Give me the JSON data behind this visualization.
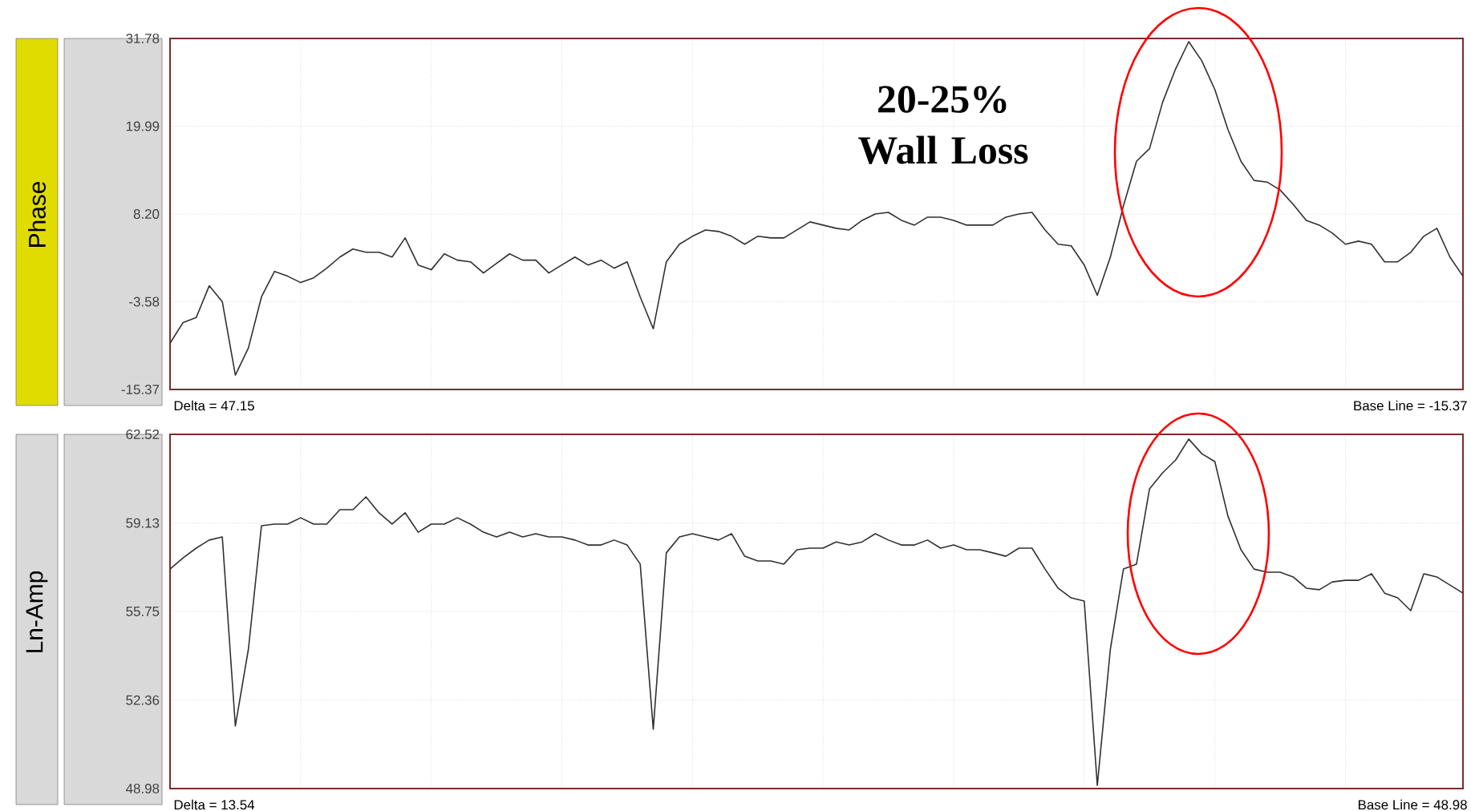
{
  "chart_data": [
    {
      "type": "line",
      "ylabel": "Phase",
      "color": "#303030",
      "grid": true,
      "tick_labels": "y",
      "categories": [
        null,
        null,
        null,
        null,
        null,
        null,
        null,
        null,
        null,
        null,
        null,
        null,
        null,
        null,
        null,
        null,
        null,
        null,
        null,
        null,
        null,
        null,
        null,
        null,
        null,
        null,
        null,
        null,
        null,
        null,
        null,
        null,
        null,
        null,
        null,
        null,
        null,
        null,
        null,
        null,
        null,
        null,
        null,
        null,
        null,
        null,
        null,
        null,
        null,
        null,
        null,
        null,
        null,
        null,
        null,
        null,
        null,
        null,
        null,
        null,
        null,
        null,
        null,
        null,
        null,
        null,
        null,
        null,
        null,
        null,
        null,
        null,
        null,
        null,
        null,
        null,
        null,
        null,
        null,
        null,
        null,
        null,
        null,
        null,
        null,
        null,
        null,
        null,
        null,
        null,
        null,
        null,
        null,
        null,
        null,
        null,
        null,
        null,
        null,
        null
      ],
      "values": [
        -9.15,
        -6.37,
        -5.72,
        -1.44,
        -3.58,
        -13.44,
        -9.79,
        -2.93,
        0.49,
        -0.15,
        -1.01,
        -0.37,
        0.92,
        2.42,
        3.49,
        3.06,
        3.06,
        2.42,
        4.99,
        1.35,
        0.71,
        2.85,
        2.0,
        1.78,
        0.28,
        1.56,
        2.85,
        2.0,
        2.0,
        0.28,
        1.35,
        2.42,
        1.35,
        2.0,
        0.92,
        1.78,
        -2.93,
        -7.22,
        1.78,
        4.14,
        5.21,
        6.06,
        5.85,
        5.21,
        4.14,
        5.21,
        4.99,
        4.99,
        6.06,
        7.14,
        6.71,
        6.28,
        6.06,
        7.35,
        8.21,
        8.42,
        7.35,
        6.71,
        7.78,
        7.78,
        7.35,
        6.71,
        6.71,
        6.71,
        7.78,
        8.21,
        8.42,
        6.06,
        4.14,
        3.92,
        1.35,
        -2.72,
        2.42,
        9.28,
        15.28,
        16.99,
        23.21,
        27.71,
        31.35,
        28.78,
        24.92,
        19.56,
        15.28,
        12.71,
        12.49,
        11.42,
        9.49,
        7.35,
        6.71,
        5.64,
        4.14,
        4.56,
        4.14,
        1.78,
        1.78,
        3.06,
        5.21,
        6.28,
        2.42,
        -0.15
      ],
      "ylim": [
        -15.37,
        31.78
      ],
      "yticks": [
        -15.37,
        -3.58,
        {
          "value": 8.2,
          "label": "8.20"
        },
        19.99,
        31.78
      ],
      "annotations": [
        "Delta = 47.15",
        "Base Line = -15.37",
        "20-25% Wall Loss"
      ]
    },
    {
      "type": "line",
      "ylabel": "Ln-Amp",
      "color": "#303030",
      "grid": true,
      "tick_labels": "y",
      "categories": [
        null,
        null,
        null,
        null,
        null,
        null,
        null,
        null,
        null,
        null,
        null,
        null,
        null,
        null,
        null,
        null,
        null,
        null,
        null,
        null,
        null,
        null,
        null,
        null,
        null,
        null,
        null,
        null,
        null,
        null,
        null,
        null,
        null,
        null,
        null,
        null,
        null,
        null,
        null,
        null,
        null,
        null,
        null,
        null,
        null,
        null,
        null,
        null,
        null,
        null,
        null,
        null,
        null,
        null,
        null,
        null,
        null,
        null,
        null,
        null,
        null,
        null,
        null,
        null,
        null,
        null,
        null,
        null,
        null,
        null,
        null,
        null,
        null,
        null,
        null,
        null,
        null,
        null,
        null,
        null,
        null,
        null,
        null,
        null,
        null,
        null,
        null,
        null,
        null,
        null,
        null,
        null,
        null,
        null,
        null,
        null,
        null,
        null,
        null,
        null
      ],
      "values": [
        57.37,
        57.8,
        58.17,
        58.48,
        58.6,
        51.37,
        54.31,
        59.03,
        59.09,
        59.09,
        59.33,
        59.09,
        59.09,
        59.64,
        59.64,
        60.13,
        59.52,
        59.09,
        59.52,
        58.78,
        59.09,
        59.09,
        59.33,
        59.09,
        58.78,
        58.6,
        58.78,
        58.6,
        58.72,
        58.6,
        58.6,
        58.48,
        58.29,
        58.29,
        58.48,
        58.29,
        57.56,
        51.25,
        57.99,
        58.6,
        58.72,
        58.6,
        58.48,
        58.72,
        57.86,
        57.68,
        57.68,
        57.56,
        58.11,
        58.17,
        58.17,
        58.41,
        58.29,
        58.41,
        58.72,
        58.48,
        58.29,
        58.29,
        58.48,
        58.17,
        58.29,
        58.11,
        58.11,
        57.99,
        57.86,
        58.17,
        58.17,
        57.37,
        56.64,
        56.27,
        56.15,
        49.1,
        54.31,
        57.37,
        57.56,
        60.44,
        61.05,
        61.54,
        62.34,
        61.78,
        61.48,
        59.4,
        58.11,
        57.37,
        57.25,
        57.25,
        57.07,
        56.64,
        56.58,
        56.88,
        56.94,
        56.94,
        57.19,
        56.45,
        56.27,
        55.78,
        57.19,
        57.07,
        56.76,
        56.45
      ],
      "ylim": [
        48.98,
        62.52
      ],
      "yticks": [
        48.98,
        52.36,
        55.75,
        59.13,
        62.52
      ],
      "annotations": [
        "Delta = 13.54",
        "Base Line = 48.98"
      ]
    }
  ]
}
